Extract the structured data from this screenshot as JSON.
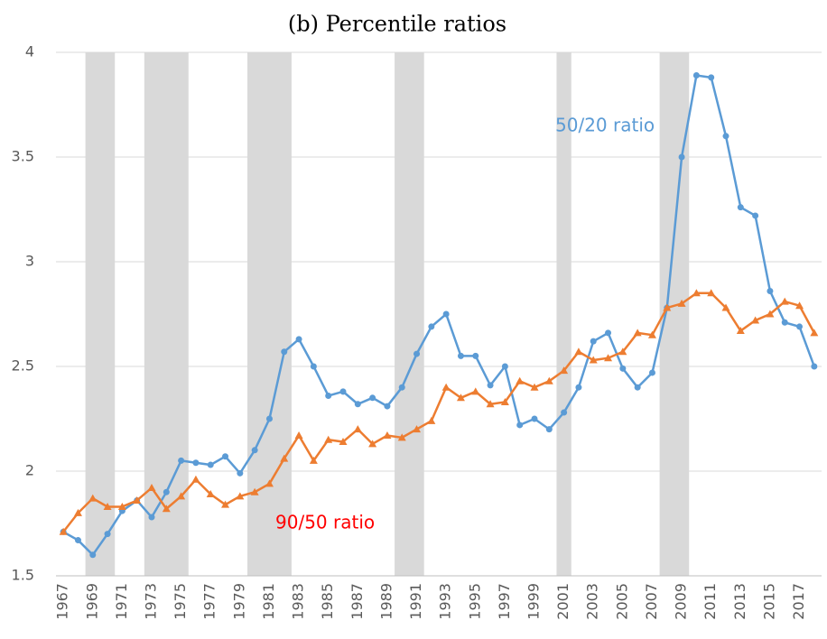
{
  "chart_data": {
    "type": "line",
    "title": "(b) Percentile ratios",
    "x": [
      1967,
      1968,
      1969,
      1970,
      1971,
      1972,
      1973,
      1974,
      1975,
      1976,
      1977,
      1978,
      1979,
      1980,
      1981,
      1982,
      1983,
      1984,
      1985,
      1986,
      1987,
      1988,
      1989,
      1990,
      1991,
      1992,
      1993,
      1994,
      1995,
      1996,
      1997,
      1998,
      1999,
      2000,
      2001,
      2002,
      2003,
      2004,
      2005,
      2006,
      2007,
      2008,
      2009,
      2010,
      2011,
      2012,
      2013,
      2014,
      2015,
      2016,
      2017,
      2018
    ],
    "xlim": [
      1966.5,
      2018.5
    ],
    "xticks": [
      1967,
      1969,
      1971,
      1973,
      1975,
      1977,
      1979,
      1981,
      1983,
      1985,
      1987,
      1989,
      1991,
      1993,
      1995,
      1997,
      1999,
      2001,
      2003,
      2005,
      2007,
      2009,
      2011,
      2013,
      2015,
      2017
    ],
    "ylim": [
      1.5,
      4
    ],
    "yticks": [
      1.5,
      2,
      2.5,
      3,
      3.5,
      4
    ],
    "grid": true,
    "shaded_periods": [
      [
        1969,
        1970
      ],
      [
        1973,
        1975
      ],
      [
        1980,
        1982
      ],
      [
        1990,
        1991
      ],
      [
        2001,
        2001
      ],
      [
        2008,
        2009
      ]
    ],
    "shade_color": "#d9d9d9",
    "series": [
      {
        "name": "50/20 ratio",
        "color": "#5b9bd5",
        "label_color": "#5b9bd5",
        "marker": "circle",
        "values": [
          1.71,
          1.67,
          1.6,
          1.7,
          1.81,
          1.86,
          1.78,
          1.9,
          2.05,
          2.04,
          2.03,
          2.07,
          1.99,
          2.1,
          2.25,
          2.57,
          2.63,
          2.5,
          2.36,
          2.38,
          2.32,
          2.35,
          2.31,
          2.4,
          2.56,
          2.69,
          2.75,
          2.55,
          2.55,
          2.41,
          2.5,
          2.22,
          2.25,
          2.2,
          2.28,
          2.4,
          2.62,
          2.66,
          2.49,
          2.4,
          2.47,
          2.78,
          3.5,
          3.89,
          3.88,
          3.6,
          3.26,
          3.22,
          2.86,
          2.71,
          2.69,
          2.5
        ]
      },
      {
        "name": "90/50 ratio",
        "color": "#ed7d31",
        "label_color": "#ff0000",
        "marker": "triangle",
        "values": [
          1.71,
          1.8,
          1.87,
          1.83,
          1.83,
          1.86,
          1.92,
          1.82,
          1.88,
          1.96,
          1.89,
          1.84,
          1.88,
          1.9,
          1.94,
          2.06,
          2.17,
          2.05,
          2.15,
          2.14,
          2.2,
          2.13,
          2.17,
          2.16,
          2.2,
          2.24,
          2.4,
          2.35,
          2.38,
          2.32,
          2.33,
          2.43,
          2.4,
          2.43,
          2.48,
          2.57,
          2.53,
          2.54,
          2.57,
          2.66,
          2.65,
          2.78,
          2.8,
          2.85,
          2.85,
          2.78,
          2.67,
          2.72,
          2.75,
          2.81,
          2.79,
          2.66
        ]
      }
    ]
  }
}
